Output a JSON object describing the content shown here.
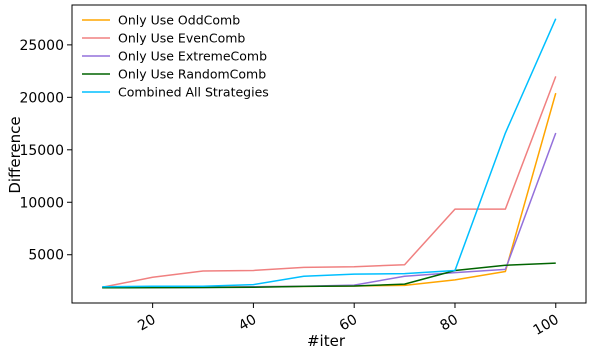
{
  "chart_data": {
    "type": "line",
    "xlabel": "#iter",
    "ylabel": "Difference",
    "xlim": [
      4,
      106
    ],
    "ylim": [
      400,
      28800
    ],
    "xticks": [
      20,
      40,
      60,
      80,
      100
    ],
    "yticks": [
      5000,
      10000,
      15000,
      20000,
      25000
    ],
    "x_tick_rotation_deg": 30,
    "grid": false,
    "legend_position": "top-left",
    "x": [
      10,
      20,
      30,
      40,
      50,
      60,
      70,
      80,
      90,
      100
    ],
    "series": [
      {
        "name": "Only Use OddComb",
        "color": "#ffa500",
        "values": [
          1850,
          1870,
          1900,
          1950,
          1980,
          2020,
          2080,
          2600,
          3400,
          20400
        ]
      },
      {
        "name": "Only Use EvenComb",
        "color": "#f08080",
        "values": [
          1900,
          2850,
          3450,
          3500,
          3800,
          3850,
          4050,
          9350,
          9350,
          22000
        ]
      },
      {
        "name": "Only Use ExtremeComb",
        "color": "#9370db",
        "values": [
          1850,
          1860,
          1880,
          1950,
          2000,
          2100,
          2950,
          3300,
          3600,
          16600
        ]
      },
      {
        "name": "Only Use RandomComb",
        "color": "#006400",
        "values": [
          1850,
          1860,
          1880,
          1900,
          1980,
          2020,
          2200,
          3500,
          4000,
          4200
        ]
      },
      {
        "name": "Combined All Strategies",
        "color": "#00bfff",
        "values": [
          1950,
          2000,
          2000,
          2150,
          2950,
          3150,
          3200,
          3500,
          16600,
          27500
        ]
      }
    ]
  }
}
